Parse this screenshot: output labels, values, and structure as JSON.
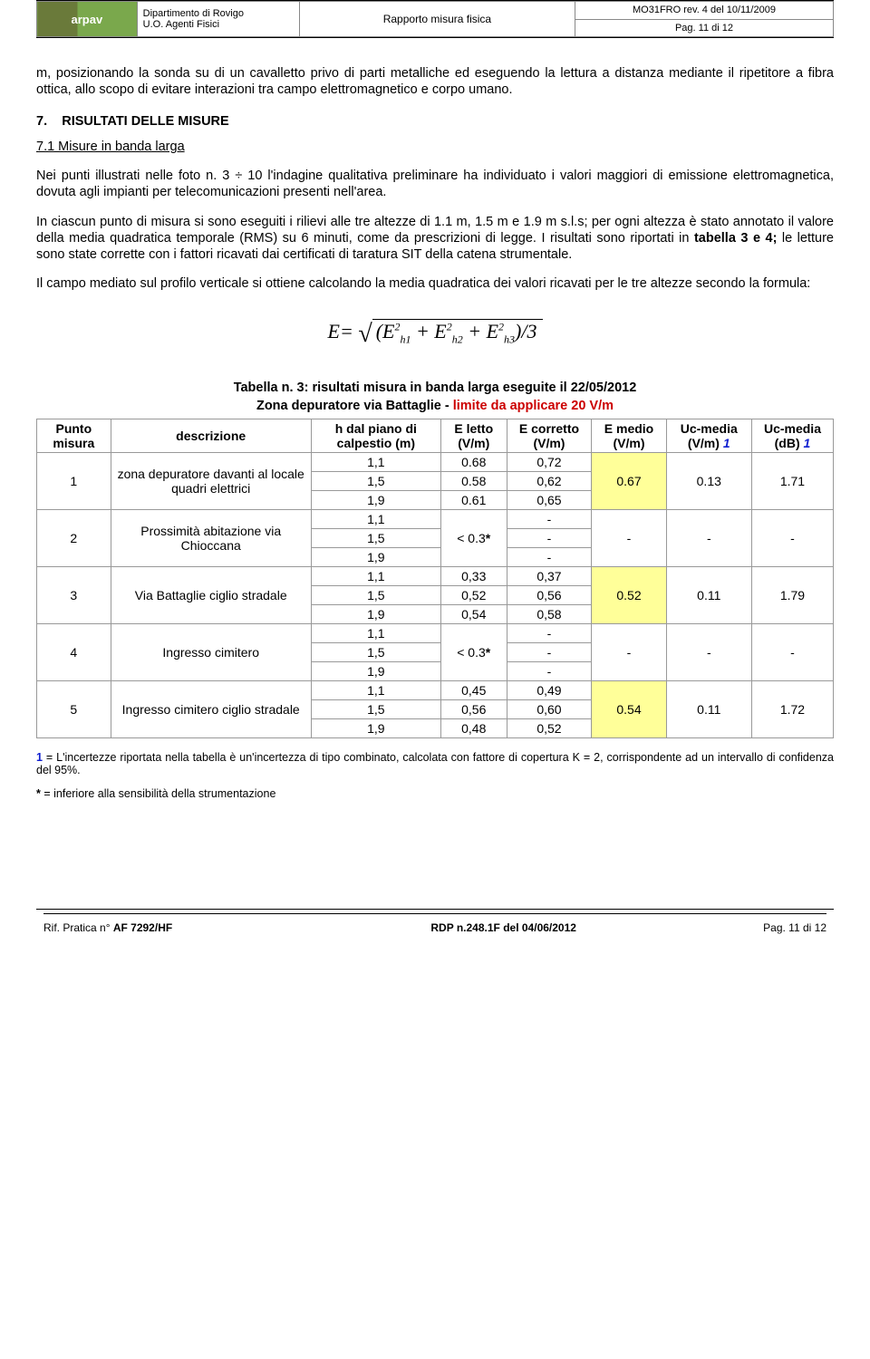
{
  "header": {
    "logo_text": "arpav",
    "dept_line1": "Dipartimento di Rovigo",
    "dept_line2": "U.O. Agenti Fisici",
    "mid": "Rapporto misura fisica",
    "right_top": "MO31FRO rev. 4 del 10/11/2009",
    "right_bot": "Pag. 11 di 12"
  },
  "para1": "m, posizionando la sonda su di un cavalletto privo di parti metalliche ed eseguendo la lettura a distanza mediante il ripetitore a fibra ottica, allo scopo di evitare interazioni tra campo elettromagnetico e corpo umano.",
  "sec7_num": "7.",
  "sec7_title": "RISULTATI DELLE MISURE",
  "sub71": "7.1 Misure in banda larga",
  "para2": "Nei punti illustrati nelle foto n. 3 ÷ 10 l'indagine qualitativa preliminare ha individuato i valori maggiori di emissione elettromagnetica, dovuta agli impianti per telecomunicazioni presenti nell'area.",
  "para3": "In ciascun punto di misura si sono eseguiti i rilievi alle tre altezze di 1.1 m, 1.5 m e 1.9 m s.l.s; per ogni altezza è stato annotato il valore della media quadratica temporale (RMS) su 6 minuti, come da prescrizioni di legge. I risultati sono riportati in tabella 3 e 4; le letture sono state corrette con i fattori ricavati dai certificati di taratura SIT della catena strumentale.",
  "para4": "Il campo mediato sul profilo verticale si ottiene calcolando la media quadratica dei valori ricavati per le tre altezze secondo la formula:",
  "formula": {
    "lead": "E= ",
    "radicand": "(E²h1 + E²h2 + E²h3) / 3"
  },
  "tab_caption_line1": "Tabella n. 3: risultati misura in banda larga eseguite il 22/05/2012",
  "tab_caption_line2a": "Zona depuratore via Battaglie - ",
  "tab_caption_line2b": "limite da applicare 20 V/m",
  "table": {
    "headers": {
      "c1": "Punto misura",
      "c2": "descrizione",
      "c3": "h dal piano di calpestio (m)",
      "c4": "E letto (V/m)",
      "c5": "E corretto (V/m)",
      "c6": "E medio (V/m)",
      "c7a": "Uc-media (V/m) ",
      "c7b": "1",
      "c8a": "Uc-media (dB) ",
      "c8b": "1"
    },
    "groups": [
      {
        "punto": "1",
        "desc": "zona depuratore davanti al locale quadri elettrici",
        "rows": [
          {
            "h": "1,1",
            "letto": "0.68",
            "corr": "0,72"
          },
          {
            "h": "1,5",
            "letto": "0.58",
            "corr": "0,62"
          },
          {
            "h": "1,9",
            "letto": "0.61",
            "corr": "0,65"
          }
        ],
        "medio": "0.67",
        "uc_v": "0.13",
        "uc_db": "1.71",
        "hl": true
      },
      {
        "punto": "2",
        "desc": "Prossimità abitazione via Chioccana",
        "rows": [
          {
            "h": "1,1",
            "letto": "",
            "corr": "-"
          },
          {
            "h": "1,5",
            "letto": "< 0.3*",
            "corr": "-"
          },
          {
            "h": "1,9",
            "letto": "",
            "corr": "-"
          }
        ],
        "medio": "-",
        "uc_v": "-",
        "uc_db": "-",
        "hl": false,
        "letto_span": true
      },
      {
        "punto": "3",
        "desc": "Via Battaglie ciglio stradale",
        "rows": [
          {
            "h": "1,1",
            "letto": "0,33",
            "corr": "0,37"
          },
          {
            "h": "1,5",
            "letto": "0,52",
            "corr": "0,56"
          },
          {
            "h": "1,9",
            "letto": "0,54",
            "corr": "0,58"
          }
        ],
        "medio": "0.52",
        "uc_v": "0.11",
        "uc_db": "1.79",
        "hl": true
      },
      {
        "punto": "4",
        "desc": "Ingresso cimitero",
        "rows": [
          {
            "h": "1,1",
            "letto": "",
            "corr": "-"
          },
          {
            "h": "1,5",
            "letto": "< 0.3*",
            "corr": "-"
          },
          {
            "h": "1,9",
            "letto": "",
            "corr": "-"
          }
        ],
        "medio": "-",
        "uc_v": "-",
        "uc_db": "-",
        "hl": false,
        "letto_span": true
      },
      {
        "punto": "5",
        "desc": "Ingresso cimitero ciglio stradale",
        "rows": [
          {
            "h": "1,1",
            "letto": "0,45",
            "corr": "0,49"
          },
          {
            "h": "1,5",
            "letto": "0,56",
            "corr": "0,60"
          },
          {
            "h": "1,9",
            "letto": "0,48",
            "corr": "0,52"
          }
        ],
        "medio": "0.54",
        "uc_v": "0.11",
        "uc_db": "1.72",
        "hl": true
      }
    ]
  },
  "footnote1_lead": "1",
  "footnote1": " = L'incertezze riportata nella tabella è un'incertezza di tipo combinato, calcolata con fattore di copertura K = 2, corrispondente ad un intervallo di confidenza del 95%.",
  "footnote2_lead": "*",
  "footnote2": " = inferiore alla sensibilità della strumentazione",
  "footer": {
    "left_a": "Rif. Pratica n° ",
    "left_b": "AF 7292/HF",
    "mid_a": "RDP n.248.1F",
    "mid_b": "  del  04/06/2012",
    "right": "Pag. 11 di 12"
  },
  "styling": {
    "highlight_color": "#ffff99",
    "limit_color": "#cc0000",
    "ref_color": "#1020d0",
    "border_color": "#999999",
    "font_body_pt": 14.5,
    "font_table_pt": 14,
    "font_footnote_pt": 12.5
  }
}
